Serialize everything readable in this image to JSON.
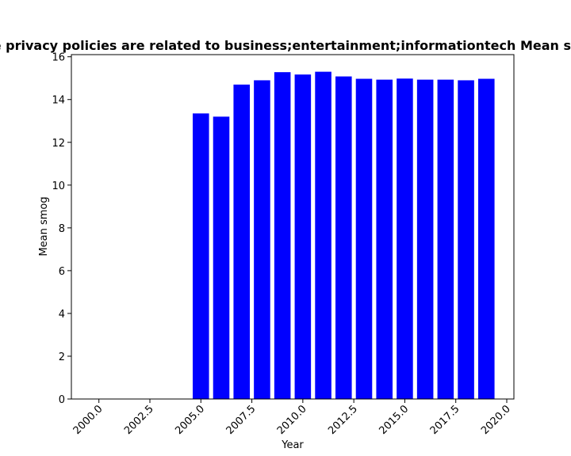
{
  "chart_data": {
    "type": "bar",
    "title": "Fraction of apps whose privacy policies are related to business;entertainment;informationtech Mean smog in privacy policies",
    "xlabel": "Year",
    "ylabel": "Mean smog",
    "x": [
      2005,
      2006,
      2007,
      2008,
      2009,
      2010,
      2011,
      2012,
      2013,
      2014,
      2015,
      2016,
      2017,
      2018,
      2019
    ],
    "values": [
      13.35,
      13.2,
      14.7,
      14.9,
      15.28,
      15.17,
      15.3,
      15.08,
      14.97,
      14.93,
      14.98,
      14.93,
      14.93,
      14.9,
      14.97
    ],
    "xlim": [
      1998.65,
      2020.35
    ],
    "ylim": [
      0,
      16.1
    ],
    "xticks": [
      "2000.0",
      "2002.5",
      "2005.0",
      "2007.5",
      "2010.0",
      "2012.5",
      "2015.0",
      "2017.5",
      "2020.0"
    ],
    "xtick_values": [
      2000,
      2002.5,
      2005,
      2007.5,
      2010,
      2012.5,
      2015,
      2017.5,
      2020
    ],
    "yticks": [
      "0",
      "2",
      "4",
      "6",
      "8",
      "10",
      "12",
      "14",
      "16"
    ],
    "ytick_values": [
      0,
      2,
      4,
      6,
      8,
      10,
      12,
      14,
      16
    ],
    "bar_color": "#0000ff",
    "grid": false,
    "legend": "none"
  }
}
